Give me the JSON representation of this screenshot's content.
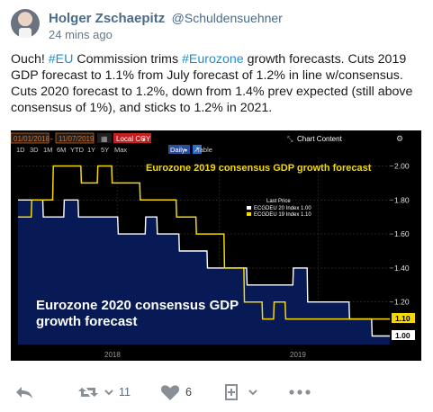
{
  "tweet": {
    "author_name": "Holger Zschaepitz",
    "author_handle": "@Schuldensuehner",
    "time_ago": "24 mins ago",
    "text_parts": [
      "Ouch! ",
      "#EU",
      " Commission trims ",
      "#Eurozone",
      " growth forecasts. Cuts 2019 GDP forecast to 1.1% from July forecast of 1.2% in line w/consensus. Cuts 2020 forecast to 1.2%, down from 1.4% prev expected (still above consensus of 1%), and sticks to 1.2% in 2021."
    ]
  },
  "chart": {
    "date_from": "01/01/2018",
    "date_to": "11/07/2019",
    "currency": "Local CCY",
    "period_buttons": [
      "1D",
      "3D",
      "1M",
      "6M",
      "YTD",
      "1Y",
      "5Y",
      "Max"
    ],
    "frequency": "Daily",
    "table_label": "Table",
    "chart_content_label": "Chart Content",
    "title_2019": "Eurozone 2019 consensus GDP growth forecast",
    "title_2020_line1": "Eurozone 2020 consensus GDP",
    "title_2020_line2": "growth forecast",
    "legend_title": "Last Price",
    "legend_entries": [
      "ECGDEU 20 Index 1.00",
      "ECGDEU 19 Index 1.10"
    ],
    "last_values": [
      "1.10",
      "1.00"
    ],
    "y_ticks": [
      "2.00",
      "1.80",
      "1.60",
      "1.40",
      "1.20"
    ],
    "x_ticks": [
      "2018",
      "2019"
    ]
  },
  "chart_data": {
    "type": "line",
    "title": "Eurozone 2019 consensus GDP growth forecast",
    "ylim": [
      0.95,
      2.05
    ],
    "series": [
      {
        "name": "ECGDEU 19 Index",
        "color": "#f5d800",
        "points": [
          [
            "2018-01-01",
            1.7
          ],
          [
            "2018-01-25",
            1.7
          ],
          [
            "2018-01-26",
            1.8
          ],
          [
            "2018-03-05",
            1.8
          ],
          [
            "2018-03-06",
            2.0
          ],
          [
            "2018-04-25",
            2.0
          ],
          [
            "2018-04-26",
            1.9
          ],
          [
            "2018-05-25",
            1.9
          ],
          [
            "2018-05-26",
            2.0
          ],
          [
            "2018-06-20",
            2.0
          ],
          [
            "2018-06-21",
            1.9
          ],
          [
            "2018-07-15",
            1.9
          ],
          [
            "2018-07-16",
            1.9
          ],
          [
            "2018-08-10",
            1.9
          ],
          [
            "2018-08-11",
            1.8
          ],
          [
            "2018-10-15",
            1.8
          ],
          [
            "2018-10-16",
            1.7
          ],
          [
            "2018-11-20",
            1.7
          ],
          [
            "2018-11-21",
            1.6
          ],
          [
            "2019-01-10",
            1.6
          ],
          [
            "2019-01-11",
            1.4
          ],
          [
            "2019-02-15",
            1.4
          ],
          [
            "2019-02-16",
            1.2
          ],
          [
            "2019-03-20",
            1.2
          ],
          [
            "2019-03-21",
            1.1
          ],
          [
            "2019-04-10",
            1.1
          ],
          [
            "2019-04-11",
            1.2
          ],
          [
            "2019-05-01",
            1.2
          ],
          [
            "2019-05-02",
            1.1
          ],
          [
            "2019-11-07",
            1.1
          ]
        ]
      },
      {
        "name": "ECGDEU 20 Index",
        "color": "#ffffff",
        "points": [
          [
            "2018-01-01",
            1.8
          ],
          [
            "2018-02-15",
            1.8
          ],
          [
            "2018-02-16",
            1.7
          ],
          [
            "2018-03-25",
            1.7
          ],
          [
            "2018-03-26",
            1.8
          ],
          [
            "2018-04-20",
            1.8
          ],
          [
            "2018-04-21",
            1.7
          ],
          [
            "2018-07-01",
            1.7
          ],
          [
            "2018-07-02",
            1.6
          ],
          [
            "2018-08-20",
            1.6
          ],
          [
            "2018-08-21",
            1.7
          ],
          [
            "2018-09-10",
            1.7
          ],
          [
            "2018-09-11",
            1.6
          ],
          [
            "2018-10-20",
            1.6
          ],
          [
            "2018-10-21",
            1.5
          ],
          [
            "2018-12-10",
            1.5
          ],
          [
            "2018-12-11",
            1.4
          ],
          [
            "2019-02-20",
            1.4
          ],
          [
            "2019-02-21",
            1.3
          ],
          [
            "2019-05-15",
            1.3
          ],
          [
            "2019-05-16",
            1.4
          ],
          [
            "2019-06-10",
            1.4
          ],
          [
            "2019-06-11",
            1.2
          ],
          [
            "2019-08-25",
            1.2
          ],
          [
            "2019-08-26",
            1.1
          ],
          [
            "2019-10-05",
            1.1
          ],
          [
            "2019-10-06",
            1.0
          ],
          [
            "2019-11-07",
            1.0
          ]
        ]
      }
    ]
  },
  "actions": {
    "retweet_count": "11",
    "like_count": "6"
  }
}
